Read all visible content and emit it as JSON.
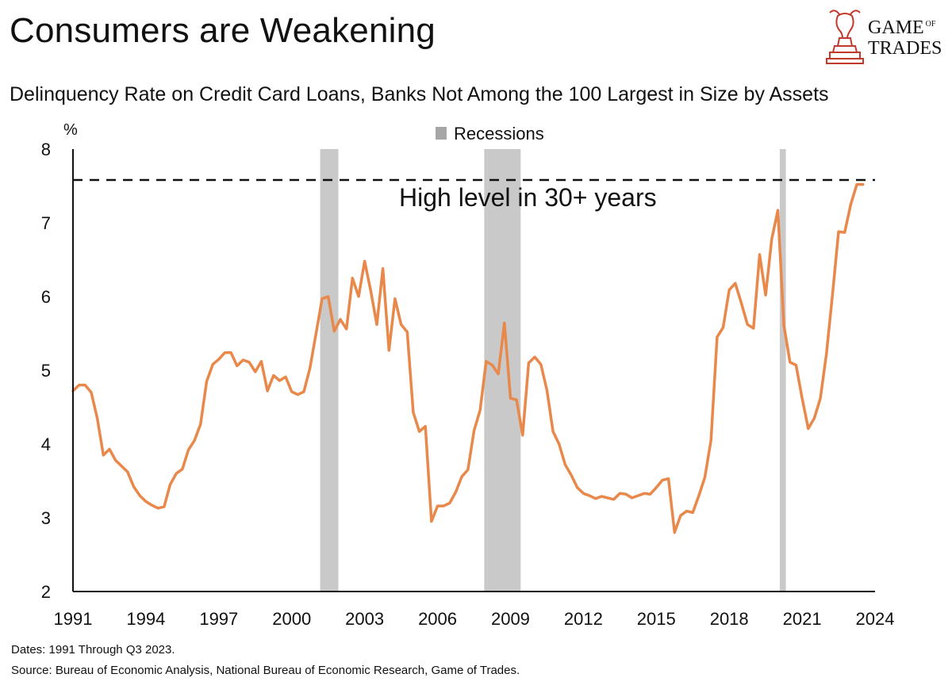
{
  "header": {
    "title": "Consumers are Weakening",
    "subtitle": "Delinquency Rate on Credit Card Loans, Banks Not Among the 100 Largest in Size by Assets"
  },
  "logo": {
    "line1": "GAME",
    "of": "OF",
    "line2": "TRADES",
    "accent_color": "#c0392b"
  },
  "footer": {
    "dates": "Dates: 1991 Through Q3 2023.",
    "source": "Source: Bureau of Economic Analysis, National Bureau of Economic Research, Game of Trades."
  },
  "chart_data": {
    "type": "line",
    "ylabel": "%",
    "ylim": [
      2,
      8
    ],
    "xlim": [
      1991,
      2024
    ],
    "y_ticks": [
      "2",
      "3",
      "4",
      "5",
      "6",
      "7",
      "8"
    ],
    "x_ticks": [
      "1991",
      "1994",
      "1997",
      "2000",
      "2003",
      "2006",
      "2009",
      "2012",
      "2015",
      "2018",
      "2021",
      "2024"
    ],
    "legend": {
      "label": "Recessions",
      "position": "top-center"
    },
    "recessions": [
      [
        2001.17,
        2001.92
      ],
      [
        2007.92,
        2009.42
      ],
      [
        2020.08,
        2020.33
      ]
    ],
    "reference_line": {
      "y": 7.58,
      "label": "High level in 30+ years",
      "style": "dashed"
    },
    "series": [
      {
        "color": "#e8884a",
        "x": [
          1991.0,
          1991.25,
          1991.5,
          1991.75,
          1992.0,
          1992.25,
          1992.5,
          1992.75,
          1993.0,
          1993.25,
          1993.5,
          1993.75,
          1994.0,
          1994.25,
          1994.5,
          1994.75,
          1995.0,
          1995.25,
          1995.5,
          1995.75,
          1996.0,
          1996.25,
          1996.5,
          1996.75,
          1997.0,
          1997.25,
          1997.5,
          1997.75,
          1998.0,
          1998.25,
          1998.5,
          1998.75,
          1999.0,
          1999.25,
          1999.5,
          1999.75,
          2000.0,
          2000.25,
          2000.5,
          2000.75,
          2001.0,
          2001.25,
          2001.5,
          2001.75,
          2002.0,
          2002.25,
          2002.5,
          2002.75,
          2003.0,
          2003.25,
          2003.5,
          2003.75,
          2004.0,
          2004.25,
          2004.5,
          2004.75,
          2005.0,
          2005.25,
          2005.5,
          2005.75,
          2006.0,
          2006.25,
          2006.5,
          2006.75,
          2007.0,
          2007.25,
          2007.5,
          2007.75,
          2008.0,
          2008.25,
          2008.5,
          2008.75,
          2009.0,
          2009.25,
          2009.5,
          2009.75,
          2010.0,
          2010.25,
          2010.5,
          2010.75,
          2011.0,
          2011.25,
          2011.5,
          2011.75,
          2012.0,
          2012.25,
          2012.5,
          2012.75,
          2013.0,
          2013.25,
          2013.5,
          2013.75,
          2014.0,
          2014.25,
          2014.5,
          2014.75,
          2015.0,
          2015.25,
          2015.5,
          2015.75,
          2016.0,
          2016.25,
          2016.5,
          2016.75,
          2017.0,
          2017.25,
          2017.5,
          2017.75,
          2018.0,
          2018.25,
          2018.5,
          2018.75,
          2019.0,
          2019.25,
          2019.5,
          2019.75,
          2020.0,
          2020.25,
          2020.5,
          2020.75,
          2021.0,
          2021.25,
          2021.5,
          2021.75,
          2022.0,
          2022.25,
          2022.5,
          2022.75,
          2023.0,
          2023.25,
          2023.5
        ],
        "values": [
          4.72,
          4.8,
          4.8,
          4.7,
          4.35,
          3.85,
          3.93,
          3.78,
          3.7,
          3.62,
          3.42,
          3.3,
          3.22,
          3.17,
          3.13,
          3.15,
          3.45,
          3.6,
          3.66,
          3.92,
          4.05,
          4.27,
          4.85,
          5.08,
          5.15,
          5.24,
          5.24,
          5.06,
          5.14,
          5.11,
          4.98,
          5.12,
          4.72,
          4.93,
          4.86,
          4.91,
          4.71,
          4.67,
          4.71,
          5.03,
          5.5,
          5.97,
          6.0,
          5.53,
          5.69,
          5.56,
          6.25,
          6.0,
          6.48,
          6.08,
          5.62,
          6.38,
          5.27,
          5.97,
          5.62,
          5.52,
          4.43,
          4.17,
          4.24,
          2.95,
          3.16,
          3.16,
          3.2,
          3.35,
          3.56,
          3.65,
          4.18,
          4.46,
          5.12,
          5.07,
          4.95,
          5.64,
          4.62,
          4.6,
          4.12,
          5.1,
          5.18,
          5.08,
          4.73,
          4.17,
          4.0,
          3.72,
          3.58,
          3.41,
          3.33,
          3.3,
          3.26,
          3.29,
          3.27,
          3.25,
          3.33,
          3.32,
          3.27,
          3.3,
          3.33,
          3.32,
          3.41,
          3.51,
          3.53,
          2.8,
          3.03,
          3.09,
          3.07,
          3.3,
          3.55,
          4.05,
          5.45,
          5.58,
          6.09,
          6.18,
          5.91,
          5.62,
          5.57,
          6.57,
          6.02,
          6.78,
          7.17,
          5.61,
          5.11,
          5.07,
          4.62,
          4.21,
          4.35,
          4.62,
          5.22,
          6.03,
          6.88,
          6.87,
          7.25,
          7.52,
          7.52
        ]
      }
    ]
  }
}
